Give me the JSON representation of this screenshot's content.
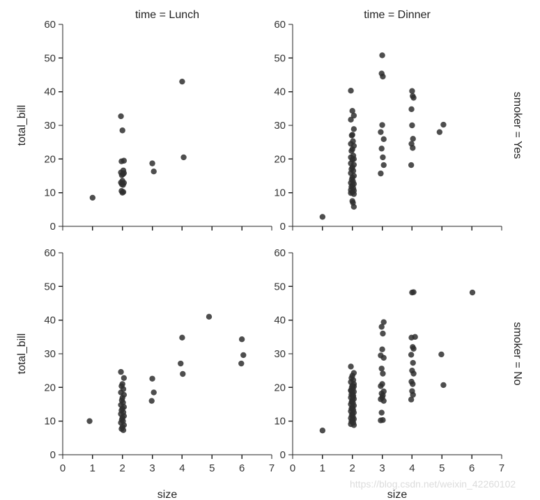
{
  "chart_data": {
    "type": "scatter",
    "facet_grid": {
      "x_var": "size",
      "y_var": "total_bill",
      "xlim": [
        0,
        7
      ],
      "ylim": [
        0,
        60
      ],
      "x_ticks": [
        0,
        1,
        2,
        3,
        4,
        5,
        6,
        7
      ],
      "y_ticks": [
        0,
        10,
        20,
        30,
        40,
        50,
        60
      ],
      "xlabel": "size",
      "ylabel": "total_bill",
      "column_labels": [
        "time = Lunch",
        "time = Dinner"
      ],
      "row_labels": [
        "smoker = Yes",
        "smoker = No"
      ],
      "marker_color": "#2f2f2f"
    },
    "panels": [
      {
        "id": "lunch-yes",
        "column_title": "time = Lunch",
        "row_title": "",
        "x": [
          1.0,
          1.95,
          2.0,
          2.05,
          1.97,
          2.03,
          1.95,
          2.05,
          1.98,
          2.02,
          2.0,
          1.95,
          2.05,
          1.98,
          2.02,
          1.97,
          2.03,
          2.0,
          3.0,
          3.05,
          4.0,
          4.05
        ],
        "y": [
          8.5,
          32.7,
          28.5,
          19.5,
          19.3,
          16.6,
          16.0,
          15.8,
          15.2,
          15.5,
          13.5,
          13.0,
          12.9,
          12.5,
          12.3,
          10.5,
          10.2,
          10.0,
          18.7,
          16.3,
          43.0,
          20.5
        ]
      },
      {
        "id": "dinner-yes",
        "column_title": "time = Dinner",
        "row_title": "smoker = Yes",
        "x": [
          1.0,
          1.95,
          2.0,
          2.05,
          1.95,
          2.05,
          2.0,
          1.98,
          2.02,
          1.95,
          2.05,
          2.0,
          1.97,
          2.03,
          1.95,
          2.05,
          2.0,
          1.95,
          2.05,
          2.0,
          1.97,
          2.03,
          1.95,
          2.05,
          2.0,
          1.98,
          2.02,
          1.95,
          2.05,
          2.0,
          1.97,
          2.03,
          1.95,
          2.05,
          2.0,
          1.95,
          2.05,
          2.0,
          2.02,
          2.05,
          3.0,
          2.98,
          3.02,
          3.0,
          2.95,
          3.05,
          2.98,
          3.02,
          3.05,
          2.95,
          4.0,
          4.02,
          4.05,
          3.98,
          4.0,
          4.03,
          3.98,
          4.02,
          3.97,
          4.92,
          5.05
        ],
        "y": [
          2.8,
          40.3,
          34.3,
          32.9,
          31.7,
          28.9,
          27.2,
          27.0,
          25.3,
          24.5,
          23.9,
          22.9,
          22.4,
          21.0,
          20.5,
          20.0,
          19.8,
          18.7,
          18.3,
          17.5,
          17.0,
          16.5,
          15.8,
          15.0,
          14.5,
          13.9,
          13.4,
          12.9,
          12.6,
          12.2,
          11.7,
          11.3,
          10.8,
          10.6,
          10.1,
          9.9,
          9.6,
          7.5,
          7.0,
          5.8,
          50.8,
          45.4,
          44.5,
          30.1,
          28.0,
          25.9,
          23.1,
          20.5,
          18.2,
          15.7,
          40.2,
          38.7,
          38.2,
          34.8,
          30.0,
          26.0,
          24.5,
          23.3,
          18.2,
          28.0,
          30.2
        ]
      },
      {
        "id": "lunch-no",
        "column_title": "",
        "row_title": "",
        "x": [
          0.9,
          1.95,
          2.05,
          2.0,
          1.97,
          2.03,
          1.95,
          2.05,
          2.0,
          1.98,
          2.02,
          1.95,
          2.05,
          2.0,
          1.97,
          2.03,
          1.95,
          2.05,
          2.0,
          1.98,
          2.02,
          1.95,
          2.05,
          2.0,
          1.97,
          2.03,
          3.0,
          3.05,
          2.98,
          4.0,
          3.95,
          4.02,
          4.9,
          6.0,
          6.05,
          5.98
        ],
        "y": [
          10.0,
          24.6,
          22.8,
          21.0,
          20.4,
          19.5,
          18.5,
          17.8,
          16.9,
          16.2,
          15.5,
          14.8,
          14.2,
          13.7,
          13.2,
          12.6,
          12.1,
          11.5,
          11.0,
          10.4,
          10.0,
          9.5,
          8.8,
          8.2,
          7.7,
          7.3,
          22.6,
          18.5,
          16.0,
          34.8,
          27.1,
          24.0,
          41.0,
          34.3,
          29.6,
          27.1
        ]
      },
      {
        "id": "dinner-no",
        "column_title": "",
        "row_title": "smoker = No",
        "x": [
          1.0,
          1.95,
          2.05,
          2.0,
          1.97,
          2.03,
          1.95,
          2.05,
          2.0,
          1.98,
          2.02,
          1.95,
          2.05,
          2.0,
          1.97,
          2.03,
          1.95,
          2.05,
          2.0,
          1.98,
          2.02,
          1.95,
          2.05,
          2.0,
          1.97,
          2.03,
          1.95,
          2.05,
          2.0,
          1.98,
          2.02,
          1.95,
          2.05,
          2.0,
          1.97,
          2.03,
          1.95,
          2.05,
          2.0,
          1.98,
          2.02,
          1.95,
          2.05,
          2.0,
          2.98,
          3.02,
          3.0,
          2.95,
          3.05,
          2.98,
          3.02,
          3.0,
          2.95,
          3.05,
          2.98,
          3.02,
          3.0,
          2.95,
          3.05,
          2.98,
          3.02,
          2.95,
          3.05,
          4.0,
          4.05,
          4.1,
          3.98,
          4.02,
          4.05,
          3.97,
          4.03,
          4.0,
          4.05,
          3.98,
          4.02,
          4.0,
          4.03,
          3.97,
          4.98,
          5.05,
          6.02
        ],
        "y": [
          7.2,
          26.2,
          24.3,
          23.5,
          22.8,
          22.2,
          21.6,
          21.0,
          20.5,
          20.0,
          19.6,
          19.1,
          18.7,
          18.3,
          17.9,
          17.5,
          17.0,
          16.6,
          16.2,
          15.8,
          15.4,
          15.0,
          14.6,
          14.1,
          13.7,
          13.3,
          12.9,
          12.5,
          12.1,
          11.7,
          11.3,
          10.9,
          10.6,
          10.2,
          9.9,
          9.5,
          9.1,
          8.8,
          13.9,
          15.7,
          17.2,
          19.1,
          20.3,
          10.3,
          38.0,
          36.0,
          31.3,
          29.5,
          28.8,
          25.6,
          24.1,
          21.0,
          20.4,
          18.8,
          18.2,
          17.6,
          17.0,
          16.5,
          16.0,
          12.5,
          10.3,
          10.2,
          39.4,
          48.2,
          48.3,
          35.0,
          34.8,
          32.0,
          31.5,
          29.7,
          27.3,
          25.0,
          24.1,
          21.7,
          21.0,
          18.9,
          17.8,
          16.4,
          29.8,
          20.7,
          48.2
        ]
      }
    ]
  },
  "watermark": "https://blog.csdn.net/weixin_42260102"
}
